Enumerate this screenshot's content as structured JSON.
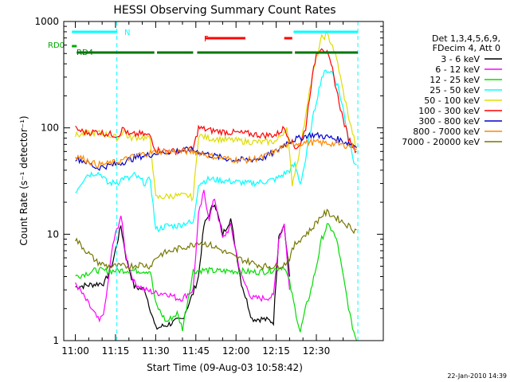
{
  "chart_data": {
    "type": "line",
    "title": "HESSI Observing Summary Count Rates",
    "xlabel": "Start Time (09-Aug-03 10:58:42)",
    "ylabel": "Count Rate (s⁻¹ detector⁻¹)",
    "y_scale": "log",
    "ylim": [
      1,
      1000
    ],
    "xlim_minutes": [
      -1.3,
      34.5
    ],
    "x_tick_labels": [
      "11:00",
      "11:15",
      "11:30",
      "11:45",
      "12:00",
      "12:15",
      "12:30"
    ],
    "x_tick_minutes": [
      0,
      15,
      30,
      45,
      60,
      75,
      90
    ],
    "x_tick_scale": 0.3,
    "y_tick_labels": [
      "1",
      "10",
      "100",
      "1000"
    ],
    "legend_header": [
      "Det 1,3,4,5,6,9,",
      "FDecim 4, Att 0"
    ],
    "legend_position": "right, outside plot",
    "grid": false,
    "flags": [
      {
        "label": "N",
        "color": "#00ffff",
        "segments": [
          [
            -1.3,
            15.5
          ],
          [
            81.5,
            105.5
          ]
        ]
      },
      {
        "label": "F",
        "color": "#ff0000",
        "segments": [
          [
            48.5,
            63.5
          ],
          [
            78.0,
            81.0
          ]
        ]
      },
      {
        "label": "RD0",
        "color": "#00aa00",
        "segments": [
          [
            -1.3,
            0.5
          ]
        ]
      },
      {
        "label": "RD4",
        "color": "#007700",
        "segments": [
          [
            0.5,
            29.5
          ],
          [
            30.5,
            44.0
          ],
          [
            45.5,
            81.0
          ],
          [
            82.0,
            105.5
          ]
        ]
      }
    ],
    "dashed_lines_minutes": [
      15.5,
      105.5
    ],
    "series": [
      {
        "name": "3 - 6 keV",
        "color": "#000000",
        "x": [
          0,
          11,
          14,
          17,
          19,
          22,
          26,
          30,
          34,
          40,
          44,
          46,
          48,
          52,
          55,
          58,
          62,
          66,
          70,
          74,
          76,
          78,
          80
        ],
        "y": [
          3.2,
          3.5,
          5.5,
          12.0,
          6.0,
          3.2,
          3.0,
          1.3,
          1.4,
          1.6,
          2.8,
          4.0,
          12.0,
          20.0,
          10.0,
          14.0,
          3.5,
          1.6,
          1.6,
          1.5,
          10.0,
          12.0,
          4.0
        ]
      },
      {
        "name": "6 - 12 keV",
        "color": "#ff00ff",
        "x": [
          0,
          9,
          11,
          14,
          17,
          19,
          22,
          26,
          30,
          34,
          38,
          40,
          44,
          46,
          48,
          50,
          52,
          55,
          58,
          62,
          66,
          70,
          74,
          76,
          78,
          80
        ],
        "y": [
          3.5,
          1.5,
          2.0,
          8.0,
          15.0,
          6.0,
          3.5,
          3.0,
          2.8,
          2.8,
          2.5,
          2.5,
          3.0,
          15.0,
          25.0,
          14.0,
          22.0,
          9.0,
          12.0,
          4.0,
          2.5,
          2.5,
          2.6,
          9.0,
          13.0,
          3.0
        ]
      },
      {
        "name": "12 - 25 keV",
        "color": "#00dd00",
        "x": [
          0,
          8,
          12,
          20,
          28,
          30,
          34,
          38,
          40,
          44,
          48,
          52,
          58,
          62,
          66,
          72,
          78,
          80,
          82,
          84,
          86,
          88,
          90,
          92,
          94,
          96,
          98,
          100,
          103,
          105
        ],
        "y": [
          4.0,
          4.6,
          4.5,
          4.6,
          4.5,
          2.2,
          1.5,
          1.8,
          1.3,
          4.5,
          4.6,
          4.5,
          4.5,
          4.5,
          4.4,
          4.5,
          5.0,
          3.5,
          2.0,
          1.2,
          2.0,
          3.0,
          5.0,
          9.0,
          12.0,
          11.0,
          8.0,
          4.0,
          1.5,
          1.0
        ]
      },
      {
        "name": "25 - 50 keV",
        "color": "#00ffff",
        "x": [
          0,
          4,
          8,
          10,
          12,
          16,
          18,
          20,
          22,
          24,
          26,
          28,
          30,
          34,
          38,
          42,
          44,
          46,
          50,
          55,
          60,
          65,
          70,
          75,
          80,
          82,
          84,
          86,
          88,
          90,
          92,
          94,
          96,
          98,
          100,
          102,
          104,
          105
        ],
        "y": [
          25.0,
          36.0,
          38.0,
          36.0,
          30.0,
          31.0,
          34.0,
          33.0,
          36.0,
          33.0,
          30.0,
          33.0,
          11.0,
          12.0,
          12.0,
          13.0,
          12.5,
          30.0,
          33.0,
          32.0,
          31.0,
          30.0,
          31.0,
          33.0,
          40.0,
          45.0,
          30.0,
          50.0,
          100.0,
          180.0,
          300.0,
          350.0,
          330.0,
          250.0,
          150.0,
          80.0,
          50.0,
          45.0
        ]
      },
      {
        "name": "50 - 100 keV",
        "color": "#dddd00",
        "x": [
          0,
          4,
          8,
          12,
          16,
          18,
          20,
          24,
          28,
          30,
          36,
          42,
          44,
          46,
          50,
          55,
          60,
          65,
          70,
          75,
          79,
          81,
          83,
          85,
          87,
          90,
          92,
          94,
          96,
          98,
          100,
          103,
          105
        ],
        "y": [
          85.0,
          88.0,
          90.0,
          86.0,
          80.0,
          95.0,
          80.0,
          82.0,
          78.0,
          22.0,
          23.0,
          23.0,
          22.0,
          85.0,
          80.0,
          78.0,
          76.0,
          74.0,
          73.0,
          75.0,
          100.0,
          30.0,
          50.0,
          90.0,
          200.0,
          450.0,
          700.0,
          750.0,
          600.0,
          400.0,
          220.0,
          100.0,
          65.0
        ]
      },
      {
        "name": "100 - 300 keV",
        "color": "#ff0000",
        "x": [
          0,
          4,
          8,
          12,
          16,
          18,
          20,
          24,
          28,
          30,
          36,
          42,
          44,
          46,
          50,
          55,
          60,
          65,
          70,
          75,
          78,
          80,
          82,
          84,
          86,
          88,
          90,
          92,
          94,
          96,
          98,
          100,
          102,
          104,
          105
        ],
        "y": [
          98.0,
          90.0,
          92.0,
          88.0,
          85.0,
          100.0,
          85.0,
          88.0,
          84.0,
          62.0,
          60.0,
          62.0,
          63.0,
          100.0,
          95.0,
          92.0,
          90.0,
          88.0,
          85.0,
          86.0,
          100.0,
          80.0,
          65.0,
          70.0,
          100.0,
          250.0,
          500.0,
          580.0,
          500.0,
          350.0,
          200.0,
          120.0,
          80.0,
          65.0,
          60.0
        ]
      },
      {
        "name": "300 - 800 keV",
        "color": "#0000cc",
        "x": [
          0,
          4,
          8,
          12,
          16,
          20,
          24,
          28,
          30,
          36,
          42,
          44,
          46,
          50,
          55,
          60,
          65,
          70,
          75,
          78,
          80,
          82,
          84,
          86,
          88,
          90,
          92,
          94,
          96,
          98,
          100,
          102,
          104,
          105
        ],
        "y": [
          52.0,
          48.0,
          42.0,
          44.0,
          46.0,
          50.0,
          54.0,
          56.0,
          58.0,
          60.0,
          62.0,
          61.0,
          60.0,
          56.0,
          52.0,
          50.0,
          50.0,
          52.0,
          60.0,
          70.0,
          75.0,
          78.0,
          80.0,
          84.0,
          86.0,
          85.0,
          84.0,
          82.0,
          80.0,
          78.0,
          75.0,
          72.0,
          70.0,
          65.0
        ]
      },
      {
        "name": "800 - 7000 keV",
        "color": "#ff8800",
        "x": [
          0,
          4,
          8,
          12,
          16,
          20,
          24,
          28,
          30,
          36,
          42,
          44,
          46,
          50,
          55,
          60,
          65,
          70,
          75,
          78,
          80,
          82,
          84,
          86,
          88,
          90,
          92,
          94,
          96,
          98,
          100,
          102,
          104,
          105
        ],
        "y": [
          55.0,
          50.0,
          45.0,
          46.0,
          48.0,
          52.0,
          56.0,
          58.0,
          60.0,
          60.0,
          60.0,
          60.0,
          59.0,
          55.0,
          52.0,
          50.0,
          50.0,
          53.0,
          60.0,
          68.0,
          70.0,
          72.0,
          72.0,
          73.0,
          73.0,
          73.0,
          72.0,
          72.0,
          71.0,
          70.0,
          69.0,
          68.0,
          66.0,
          64.0
        ]
      },
      {
        "name": "7000 - 20000 keV",
        "color": "#777700",
        "x": [
          0,
          4,
          8,
          12,
          16,
          20,
          24,
          28,
          30,
          32,
          36,
          40,
          44,
          46,
          50,
          55,
          60,
          65,
          70,
          75,
          78,
          80,
          82,
          84,
          86,
          88,
          90,
          92,
          94,
          96,
          98,
          100,
          102,
          104,
          105
        ],
        "y": [
          9.0,
          7.0,
          5.5,
          5.0,
          5.0,
          5.0,
          5.2,
          5.0,
          6.0,
          6.5,
          7.0,
          7.5,
          8.0,
          8.5,
          8.0,
          7.0,
          6.0,
          5.5,
          5.0,
          5.0,
          5.2,
          6.0,
          8.0,
          9.0,
          10.0,
          11.0,
          13.0,
          15.0,
          16.0,
          15.0,
          14.0,
          13.0,
          12.0,
          11.0,
          11.0
        ]
      }
    ]
  },
  "footer": {
    "stamp": "22-Jan-2010 14:39"
  }
}
